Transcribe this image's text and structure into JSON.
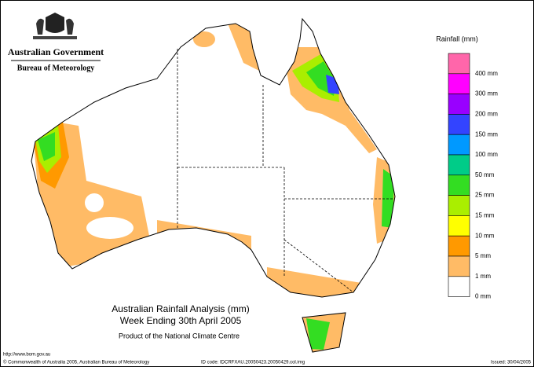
{
  "header": {
    "org": "Australian Government",
    "bureau": "Bureau of Meteorology"
  },
  "legend": {
    "title": "Rainfall (mm)",
    "items": [
      {
        "label": "400 mm",
        "color": "#ff66aa"
      },
      {
        "label": "300 mm",
        "color": "#ff00ff"
      },
      {
        "label": "200 mm",
        "color": "#9900ff"
      },
      {
        "label": "150 mm",
        "color": "#3344ff"
      },
      {
        "label": "100 mm",
        "color": "#0099ff"
      },
      {
        "label": "50 mm",
        "color": "#00cc88"
      },
      {
        "label": "25 mm",
        "color": "#33dd22"
      },
      {
        "label": "15 mm",
        "color": "#aaee00"
      },
      {
        "label": "10 mm",
        "color": "#ffff00"
      },
      {
        "label": "5 mm",
        "color": "#ff9900"
      },
      {
        "label": "1 mm",
        "color": "#ffbb66"
      },
      {
        "label": "0 mm",
        "color": "#ffffff"
      }
    ]
  },
  "map": {
    "title": "Australian Rainfall Analysis (mm)",
    "subtitle": "Week Ending 30th April 2005",
    "credit": "Product of the National Climate Centre"
  },
  "footer": {
    "url": "http://www.bom.gov.au",
    "copyright": "© Commonwealth of Australia 2005, Australian Bureau of Meteorology",
    "id_code": "ID code: IDCRFXAU.20050423.20050429.col.img",
    "issued": "Issued: 30/04/2005"
  }
}
